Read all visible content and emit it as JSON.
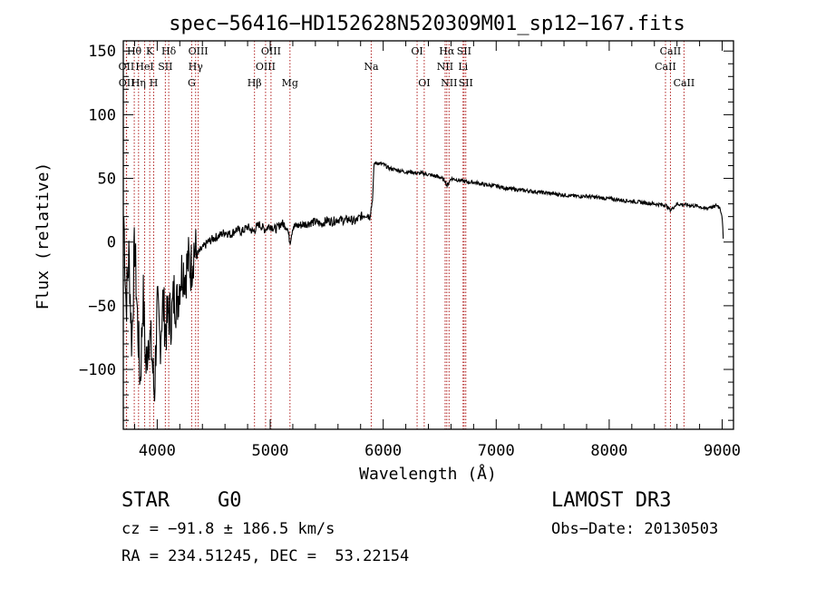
{
  "chart_data": {
    "type": "line",
    "title": "spec−56416−HD152628N520309M01_sp12−167.fits",
    "xlabel": "Wavelength (Å)",
    "ylabel": "Flux (relative)",
    "xlim": [
      3700,
      9100
    ],
    "ylim": [
      -147,
      158
    ],
    "x_ticks": [
      4000,
      5000,
      6000,
      7000,
      8000,
      9000
    ],
    "y_ticks": [
      -100,
      -50,
      0,
      50,
      100,
      150
    ],
    "x_tick_labels": [
      "4000",
      "5000",
      "6000",
      "7000",
      "8000",
      "9000"
    ],
    "y_tick_labels": [
      "−100",
      "−50",
      "0",
      "50",
      "100",
      "150"
    ],
    "grid": false,
    "series": [
      {
        "x": [
          3705,
          3725,
          3750,
          3775,
          3800,
          3825,
          3850,
          3875,
          3900,
          3925,
          3950,
          3975,
          4000,
          4025,
          4050,
          4075,
          4100,
          4125,
          4150,
          4175,
          4200,
          4225,
          4250,
          4275,
          4300,
          4325,
          4350,
          4400,
          4450,
          4500,
          4550,
          4600,
          4650,
          4700,
          4750,
          4800,
          4850,
          4900,
          4950,
          5000,
          5050,
          5100,
          5150,
          5175,
          5200,
          5250,
          5300,
          5350,
          5400,
          5450,
          5500,
          5550,
          5600,
          5650,
          5700,
          5750,
          5800,
          5850,
          5880,
          5900,
          5910,
          5920,
          5950,
          6000,
          6050,
          6100,
          6150,
          6200,
          6250,
          6300,
          6350,
          6400,
          6450,
          6500,
          6550,
          6563,
          6600,
          6650,
          6700,
          6750,
          6800,
          6900,
          7000,
          7100,
          7200,
          7300,
          7400,
          7500,
          7600,
          7700,
          7800,
          7900,
          8000,
          8100,
          8200,
          8300,
          8400,
          8500,
          8542,
          8600,
          8700,
          8800,
          8850,
          8900,
          8920,
          8950,
          8980,
          9000,
          9010
        ],
        "y": [
          20,
          -50,
          -10,
          -80,
          0,
          -60,
          -110,
          -40,
          -100,
          -70,
          -85,
          -120,
          -50,
          -80,
          -45,
          -70,
          -55,
          -60,
          -40,
          -50,
          -30,
          -20,
          -25,
          -15,
          -20,
          -5,
          -10,
          -5,
          0,
          3,
          5,
          8,
          6,
          10,
          8,
          12,
          8,
          14,
          10,
          13,
          10,
          15,
          12,
          0,
          12,
          13,
          14,
          15,
          16,
          14,
          17,
          16,
          18,
          17,
          18,
          16,
          20,
          22,
          20,
          30,
          40,
          62,
          62,
          61,
          58,
          57,
          56,
          55,
          55,
          54,
          54,
          53,
          52,
          51,
          48,
          44,
          50,
          49,
          48,
          47,
          47,
          45,
          44,
          42,
          41,
          40,
          39,
          38,
          37,
          36,
          36,
          35,
          34,
          33,
          32,
          31,
          30,
          29,
          25,
          30,
          29,
          28,
          26,
          28,
          27,
          29,
          27,
          20,
          0
        ]
      }
    ],
    "lines": [
      {
        "label": "OII",
        "x": 3727,
        "row": 2
      },
      {
        "label": "OII",
        "x": 3729,
        "row": 3
      },
      {
        "label": "Hθ",
        "x": 3797,
        "row": 1
      },
      {
        "label": "Hη",
        "x": 3835,
        "row": 3
      },
      {
        "label": "HeI",
        "x": 3889,
        "row": 2
      },
      {
        "label": "K",
        "x": 3934,
        "row": 1
      },
      {
        "label": "H",
        "x": 3969,
        "row": 3
      },
      {
        "label": "SII",
        "x": 4072,
        "row": 2
      },
      {
        "label": "Hδ",
        "x": 4102,
        "row": 1
      },
      {
        "label": "G",
        "x": 4305,
        "row": 3
      },
      {
        "label": "Hγ",
        "x": 4340,
        "row": 2
      },
      {
        "label": "OIII",
        "x": 4363,
        "row": 1
      },
      {
        "label": "Hβ",
        "x": 4861,
        "row": 3
      },
      {
        "label": "OIII",
        "x": 4959,
        "row": 2
      },
      {
        "label": "OIII",
        "x": 5007,
        "row": 1
      },
      {
        "label": "Mg",
        "x": 5175,
        "row": 3
      },
      {
        "label": "Na",
        "x": 5894,
        "row": 2
      },
      {
        "label": "OI",
        "x": 6300,
        "row": 1
      },
      {
        "label": "OI",
        "x": 6363,
        "row": 3
      },
      {
        "label": "NII",
        "x": 6548,
        "row": 2
      },
      {
        "label": "Hα",
        "x": 6563,
        "row": 1
      },
      {
        "label": "NII",
        "x": 6583,
        "row": 3
      },
      {
        "label": "Li",
        "x": 6707,
        "row": 2
      },
      {
        "label": "SII",
        "x": 6716,
        "row": 1
      },
      {
        "label": "SII",
        "x": 6731,
        "row": 3
      },
      {
        "label": "CaII",
        "x": 8498,
        "row": 2
      },
      {
        "label": "CaII",
        "x": 8542,
        "row": 1
      },
      {
        "label": "CaII",
        "x": 8662,
        "row": 3
      }
    ],
    "line_color": "#b22222",
    "curve_color": "#000000"
  },
  "info": {
    "class": "STAR",
    "subclass": "G0",
    "survey": "LAMOST DR3",
    "cz": "cz = −91.8 ± 186.5 km/s",
    "obs_date": "Obs−Date: 20130503",
    "radec": "RA = 234.51245, DEC =  53.22154"
  }
}
